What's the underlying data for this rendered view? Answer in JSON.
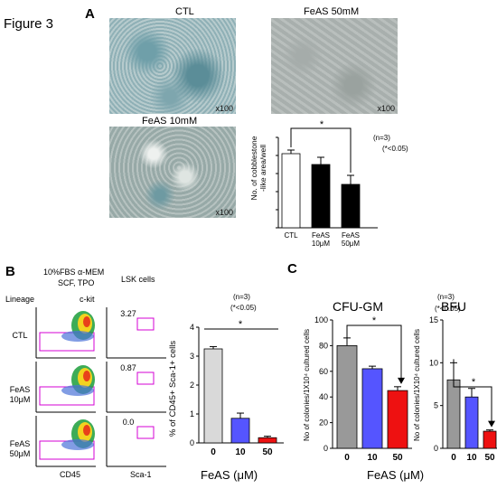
{
  "figure_label": "Figure 3",
  "panelA": {
    "letter": "A",
    "images": [
      {
        "title": "CTL",
        "mag": "x100"
      },
      {
        "title": "FeAS 50mM",
        "mag": "x100"
      },
      {
        "title": "FeAS 10mM",
        "mag": "x100"
      }
    ],
    "chart_data": {
      "type": "bar",
      "categories": [
        "CTL",
        "FeAS\n10μM",
        "FeAS\n50μM"
      ],
      "values": [
        41,
        35,
        24
      ],
      "errors": [
        2,
        4,
        5
      ],
      "fills": [
        "#ffffff",
        "#000000",
        "#000000"
      ],
      "ylabel": "No. of cobblestone\n-like area/well",
      "ylim": [
        0,
        50
      ],
      "ticks": [
        0,
        10,
        20,
        30,
        40,
        50
      ],
      "annotations": [
        "*",
        "(n=3)",
        "(*<0.05)"
      ]
    }
  },
  "panelB": {
    "letter": "B",
    "culture_line1": "10%FBS α-MEM",
    "culture_line2": "SCF, TPO",
    "lineage_label": "Lineage",
    "ckit_label": "c-kit",
    "lsk_label": "LSK cells",
    "rows": [
      "CTL",
      "FeAS\n10μM",
      "FeAS\n50μM"
    ],
    "gate_values": [
      "3.27",
      "0.87",
      "0.0"
    ],
    "x_axis_left": "CD45",
    "x_axis_right": "Sca-1",
    "chart_data": {
      "type": "bar",
      "categories": [
        "0",
        "10",
        "50"
      ],
      "values": [
        3.25,
        0.85,
        0.18
      ],
      "errors": [
        0.08,
        0.18,
        0.05
      ],
      "colors": [
        "#d9d9d9",
        "#5555ff",
        "#ee1111"
      ],
      "ylabel": "% of CD45+ Sca-1+ cells",
      "xlabel": "FeAS (μM)",
      "ylim": [
        0,
        4
      ],
      "ticks": [
        0,
        1,
        2,
        3,
        4
      ],
      "annotations": [
        "*",
        "(n=3)",
        "(*<0.05)"
      ]
    }
  },
  "panelC": {
    "letter": "C",
    "xlabel": "FeAS (μM)",
    "annotations": [
      "(n=3)",
      "(*<0.05)"
    ],
    "chart_data": [
      {
        "type": "bar",
        "title": "CFU-GM",
        "categories": [
          "0",
          "10",
          "50"
        ],
        "values": [
          80,
          62,
          45
        ],
        "errors": [
          6,
          2,
          3
        ],
        "colors": [
          "#999999",
          "#5555ff",
          "#ee1111"
        ],
        "ylabel": "No of colonies/1X10⁴ cultured cells",
        "ylim": [
          0,
          100
        ],
        "ticks": [
          0,
          20,
          40,
          60,
          80,
          100
        ],
        "annotation": "*"
      },
      {
        "type": "bar",
        "title": "BFU",
        "categories": [
          "0",
          "10",
          "50"
        ],
        "values": [
          8,
          6,
          2
        ],
        "errors": [
          2,
          1,
          0.15
        ],
        "colors": [
          "#999999",
          "#5555ff",
          "#ee1111"
        ],
        "ylabel": "No of colonies/1X10⁴ cultured cells",
        "ylim": [
          0,
          15
        ],
        "ticks": [
          0,
          5,
          10,
          15
        ],
        "annotation": "*"
      }
    ]
  }
}
